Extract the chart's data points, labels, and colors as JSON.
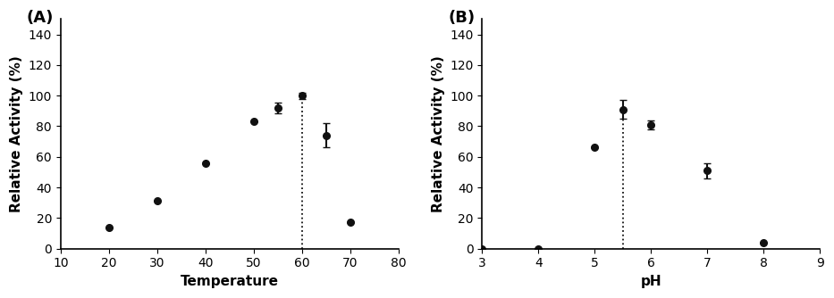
{
  "panel_A": {
    "label": "(A)",
    "x": [
      20,
      30,
      40,
      50,
      55,
      60,
      65,
      70
    ],
    "y": [
      14,
      31,
      56,
      83,
      92,
      100,
      74,
      17
    ],
    "yerr": [
      0,
      0,
      0,
      0,
      3.5,
      2,
      8,
      0
    ],
    "xlabel": "Temperature",
    "ylabel": "Relative Activity (%)",
    "xlim": [
      10,
      80
    ],
    "ylim": [
      0,
      150
    ],
    "xticks": [
      10,
      20,
      30,
      40,
      50,
      60,
      70,
      80
    ],
    "yticks": [
      0,
      20,
      40,
      60,
      80,
      100,
      120,
      140
    ],
    "vline_x": 60,
    "vline_y": 100
  },
  "panel_B": {
    "label": "(B)",
    "x": [
      3,
      4,
      5,
      5.5,
      6,
      7,
      8
    ],
    "y": [
      0,
      0,
      66,
      91,
      81,
      51,
      4
    ],
    "yerr": [
      0,
      0,
      0,
      6,
      3,
      5,
      0
    ],
    "xlabel": "pH",
    "ylabel": "Relative Activity (%)",
    "xlim": [
      3,
      9
    ],
    "ylim": [
      0,
      150
    ],
    "xticks": [
      3,
      4,
      5,
      6,
      7,
      8,
      9
    ],
    "yticks": [
      0,
      20,
      40,
      60,
      80,
      100,
      120,
      140
    ],
    "vline_x": 5.5,
    "vline_y": 91
  },
  "bg_color": "#ffffff",
  "line_color": "#111111",
  "marker": "o",
  "markersize": 5.5,
  "linewidth": 1.5,
  "capsize": 3,
  "elinewidth": 1.5,
  "label_fontsize": 11,
  "tick_fontsize": 10,
  "panel_label_fontsize": 13
}
